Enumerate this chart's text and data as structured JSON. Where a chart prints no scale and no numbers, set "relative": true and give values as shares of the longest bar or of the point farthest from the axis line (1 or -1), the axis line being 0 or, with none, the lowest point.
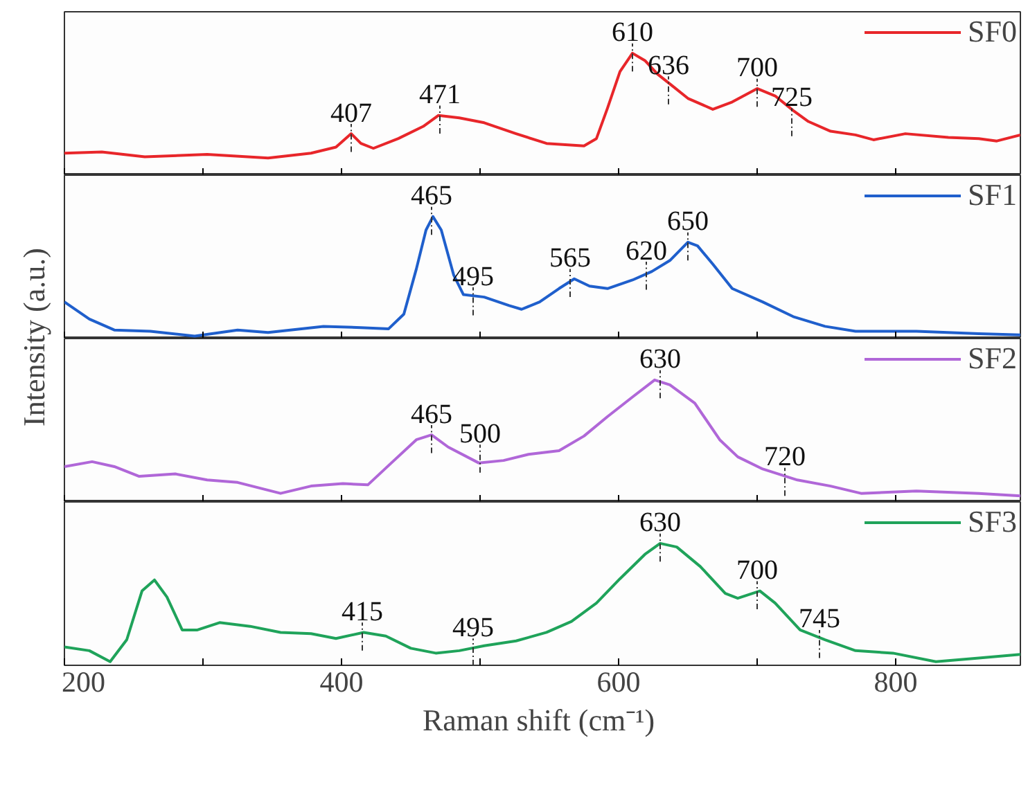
{
  "chart_data": [
    {
      "type": "line",
      "relative": true,
      "xlim": [
        200,
        890
      ],
      "xticks": [
        200,
        {
          "value": 300,
          "label": null
        },
        400,
        {
          "value": 500,
          "label": null
        },
        600,
        {
          "value": 700,
          "label": null
        },
        800
      ],
      "tick_labels": false,
      "grid": false,
      "legend": "top right",
      "ylabel": "Intensity (a.u.)",
      "series": [
        {
          "name": "SF0",
          "color": "#e8262a",
          "x": [
            200,
            227,
            258,
            303,
            347,
            378,
            396,
            407,
            414,
            423,
            441,
            459,
            470,
            485,
            503,
            526,
            548,
            575,
            584,
            592,
            601,
            610,
            619,
            628,
            639,
            650,
            668,
            682,
            700,
            713,
            726,
            737,
            753,
            771,
            784,
            807,
            838,
            860,
            873,
            890
          ],
          "values": [
            0.18,
            0.19,
            0.15,
            0.17,
            0.14,
            0.18,
            0.23,
            0.34,
            0.26,
            0.22,
            0.3,
            0.4,
            0.49,
            0.47,
            0.43,
            0.34,
            0.26,
            0.24,
            0.3,
            0.55,
            0.85,
            1.0,
            0.94,
            0.83,
            0.73,
            0.63,
            0.54,
            0.6,
            0.71,
            0.65,
            0.53,
            0.44,
            0.36,
            0.33,
            0.29,
            0.34,
            0.31,
            0.3,
            0.28,
            0.33
          ]
        }
      ],
      "annotations": [
        {
          "text": "407",
          "x": 407,
          "y": 0.34
        },
        {
          "text": "471",
          "x": 471,
          "y": 0.49
        },
        {
          "text": "610",
          "x": 610,
          "y": 1.0
        },
        {
          "text": "636",
          "x": 636,
          "y": 0.73
        },
        {
          "text": "700",
          "x": 700,
          "y": 0.71
        },
        {
          "text": "725",
          "x": 725,
          "y": 0.47
        }
      ]
    },
    {
      "type": "line",
      "relative": true,
      "xlim": [
        200,
        890
      ],
      "xticks": [
        200,
        {
          "value": 300,
          "label": null
        },
        400,
        {
          "value": 500,
          "label": null
        },
        600,
        {
          "value": 700,
          "label": null
        },
        800
      ],
      "tick_labels": false,
      "grid": false,
      "legend": "top right",
      "series": [
        {
          "name": "SF1",
          "color": "#1f5fcc",
          "x": [
            200,
            218,
            236,
            262,
            294,
            325,
            347,
            387,
            414,
            434,
            445,
            454,
            461,
            466,
            472,
            481,
            488,
            503,
            521,
            530,
            543,
            557,
            568,
            579,
            592,
            610,
            624,
            637,
            650,
            657,
            668,
            682,
            704,
            726,
            749,
            771,
            815,
            860,
            890
          ],
          "values": [
            0.3,
            0.16,
            0.07,
            0.06,
            0.02,
            0.07,
            0.05,
            0.1,
            0.09,
            0.08,
            0.2,
            0.57,
            0.89,
            1.0,
            0.89,
            0.52,
            0.36,
            0.34,
            0.27,
            0.24,
            0.3,
            0.41,
            0.49,
            0.43,
            0.41,
            0.48,
            0.55,
            0.64,
            0.79,
            0.76,
            0.61,
            0.41,
            0.3,
            0.18,
            0.1,
            0.06,
            0.06,
            0.04,
            0.03
          ]
        }
      ],
      "annotations": [
        {
          "text": "465",
          "x": 465,
          "y": 1.0
        },
        {
          "text": "495",
          "x": 495,
          "y": 0.34
        },
        {
          "text": "565",
          "x": 565,
          "y": 0.49
        },
        {
          "text": "620",
          "x": 620,
          "y": 0.55
        },
        {
          "text": "650",
          "x": 650,
          "y": 0.79
        }
      ]
    },
    {
      "type": "line",
      "relative": true,
      "xlim": [
        200,
        890
      ],
      "xticks": [
        200,
        {
          "value": 300,
          "label": null
        },
        400,
        {
          "value": 500,
          "label": null
        },
        600,
        {
          "value": 700,
          "label": null
        },
        800
      ],
      "tick_labels": false,
      "grid": false,
      "legend": "top right",
      "series": [
        {
          "name": "SF2",
          "color": "#b067d8",
          "x": [
            200,
            220,
            236,
            254,
            280,
            303,
            325,
            356,
            378,
            401,
            419,
            436,
            454,
            465,
            477,
            499,
            517,
            535,
            557,
            575,
            592,
            610,
            626,
            637,
            655,
            673,
            686,
            704,
            729,
            753,
            775,
            815,
            860,
            890
          ],
          "values": [
            0.29,
            0.33,
            0.29,
            0.21,
            0.23,
            0.18,
            0.16,
            0.07,
            0.13,
            0.15,
            0.14,
            0.32,
            0.51,
            0.55,
            0.45,
            0.32,
            0.34,
            0.39,
            0.42,
            0.54,
            0.7,
            0.86,
            1.0,
            0.96,
            0.81,
            0.51,
            0.37,
            0.27,
            0.18,
            0.13,
            0.07,
            0.09,
            0.07,
            0.05
          ]
        }
      ],
      "annotations": [
        {
          "text": "465",
          "x": 465,
          "y": 0.55
        },
        {
          "text": "500",
          "x": 500,
          "y": 0.39
        },
        {
          "text": "630",
          "x": 630,
          "y": 1.0
        },
        {
          "text": "720",
          "x": 720,
          "y": 0.2
        }
      ]
    },
    {
      "type": "line",
      "relative": true,
      "xlim": [
        200,
        890
      ],
      "xticks": [
        200,
        {
          "value": 300,
          "label": null
        },
        400,
        {
          "value": 500,
          "label": null
        },
        600,
        {
          "value": 700,
          "label": null
        },
        800
      ],
      "tick_labels": "x",
      "grid": false,
      "legend": "top right",
      "xlabel": "Raman shift  (cm⁻¹)",
      "series": [
        {
          "name": "SF3",
          "color": "#1fa35a",
          "x": [
            200,
            218,
            233,
            245,
            256,
            265,
            274,
            285,
            296,
            312,
            334,
            356,
            378,
            396,
            416,
            432,
            450,
            468,
            485,
            503,
            526,
            548,
            566,
            584,
            601,
            619,
            630,
            642,
            659,
            677,
            686,
            702,
            713,
            731,
            749,
            771,
            798,
            829,
            860,
            890
          ],
          "values": [
            0.15,
            0.12,
            0.03,
            0.21,
            0.61,
            0.7,
            0.56,
            0.29,
            0.29,
            0.35,
            0.32,
            0.27,
            0.26,
            0.22,
            0.27,
            0.24,
            0.14,
            0.1,
            0.12,
            0.16,
            0.2,
            0.27,
            0.36,
            0.51,
            0.71,
            0.91,
            1.0,
            0.97,
            0.81,
            0.59,
            0.55,
            0.61,
            0.51,
            0.29,
            0.21,
            0.12,
            0.1,
            0.03,
            0.06,
            0.09
          ]
        }
      ],
      "annotations": [
        {
          "text": "415",
          "x": 415,
          "y": 0.27
        },
        {
          "text": "495",
          "x": 495,
          "y": 0.14
        },
        {
          "text": "630",
          "x": 630,
          "y": 1.0
        },
        {
          "text": "700",
          "x": 700,
          "y": 0.61
        },
        {
          "text": "745",
          "x": 745,
          "y": 0.21
        }
      ]
    }
  ]
}
